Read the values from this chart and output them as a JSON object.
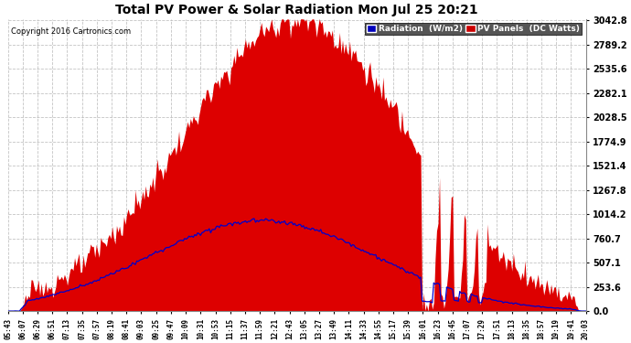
{
  "title": "Total PV Power & Solar Radiation Mon Jul 25 20:21",
  "copyright": "Copyright 2016 Cartronics.com",
  "legend_labels": [
    "Radiation  (W/m2)",
    "PV Panels  (DC Watts)"
  ],
  "y_ticks": [
    0.0,
    253.6,
    507.1,
    760.7,
    1014.2,
    1267.8,
    1521.4,
    1774.9,
    2028.5,
    2282.1,
    2535.6,
    2789.2,
    3042.8
  ],
  "y_max": 3042.8,
  "background_color": "#ffffff",
  "plot_bg_color": "#ffffff",
  "grid_color": "#aaaaaa",
  "fill_color_pv": "#dd0000",
  "line_color_radiation": "#0000cc",
  "legend_color_rad": "#0000bb",
  "legend_color_pv": "#cc0000",
  "time_labels": [
    "05:43",
    "06:07",
    "06:29",
    "06:51",
    "07:13",
    "07:35",
    "07:57",
    "08:19",
    "08:41",
    "09:03",
    "09:25",
    "09:47",
    "10:09",
    "10:31",
    "10:53",
    "11:15",
    "11:37",
    "11:59",
    "12:21",
    "12:43",
    "13:05",
    "13:27",
    "13:49",
    "14:11",
    "14:33",
    "14:55",
    "15:17",
    "15:39",
    "16:01",
    "16:23",
    "16:45",
    "17:07",
    "17:29",
    "17:51",
    "18:13",
    "18:35",
    "18:57",
    "19:19",
    "19:41",
    "20:03"
  ],
  "n_points": 400
}
